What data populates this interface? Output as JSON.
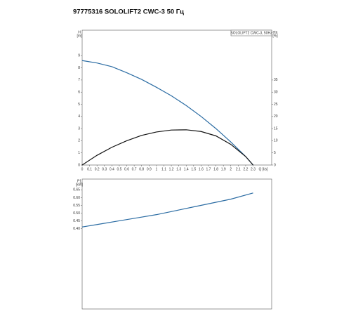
{
  "title": "97775316 SOLOLIFT2 CWC-3 50 Гц",
  "chart_data": [
    {
      "type": "line",
      "annotation": "SOLOLIFT2 CWC-3, 50Hz",
      "ylabel": [
        "H",
        "[m]"
      ],
      "y2label": [
        "eta",
        "[%]"
      ],
      "xlabel": "Q [l/s]",
      "x": [
        0,
        0.2,
        0.4,
        0.6,
        0.8,
        1.0,
        1.2,
        1.4,
        1.6,
        1.8,
        2.0,
        2.2,
        2.3
      ],
      "xlim": [
        0,
        2.55
      ],
      "xticks": [
        0,
        0.1,
        0.2,
        0.3,
        0.4,
        0.5,
        0.6,
        0.7,
        0.8,
        0.9,
        1,
        1.1,
        1.2,
        1.3,
        1.4,
        1.5,
        1.6,
        1.7,
        1.8,
        1.9,
        2,
        2.1,
        2.2,
        2.3
      ],
      "ylim": [
        0,
        11.1
      ],
      "yticks": [
        0,
        1,
        2,
        3,
        4,
        5,
        6,
        7,
        8,
        9
      ],
      "y2lim": [
        0,
        55.5
      ],
      "y2ticks": [
        0,
        5,
        10,
        15,
        20,
        25,
        30,
        35
      ],
      "series": [
        {
          "color": "#2b6ca3",
          "values": [
            8.6,
            8.4,
            8.1,
            7.6,
            7.05,
            6.4,
            5.7,
            4.9,
            4.0,
            3.0,
            1.9,
            0.7,
            0
          ]
        },
        {
          "color": "#111111",
          "axis": "y2",
          "values": [
            0,
            4,
            7.3,
            10,
            12.2,
            13.6,
            14.4,
            14.5,
            13.8,
            12,
            8.5,
            3.5,
            0
          ]
        }
      ]
    },
    {
      "type": "line",
      "ylabel": [
        "P1",
        "[kW]"
      ],
      "x": [
        0,
        0.25,
        0.5,
        0.75,
        1.0,
        1.25,
        1.5,
        1.75,
        2.0,
        2.3
      ],
      "xlim": [
        0,
        2.55
      ],
      "ylim": [
        -0.12,
        0.72
      ],
      "yticks": [
        {
          "value": 0.4,
          "label": "0.40"
        },
        0.45,
        {
          "value": 0.5,
          "label": "0.50"
        },
        0.55,
        {
          "value": 0.6,
          "label": "0.60"
        },
        0.65
      ],
      "series": [
        {
          "color": "#2b6ca3",
          "values": [
            0.41,
            0.43,
            0.45,
            0.47,
            0.49,
            0.515,
            0.54,
            0.565,
            0.59,
            0.63
          ]
        }
      ]
    }
  ]
}
